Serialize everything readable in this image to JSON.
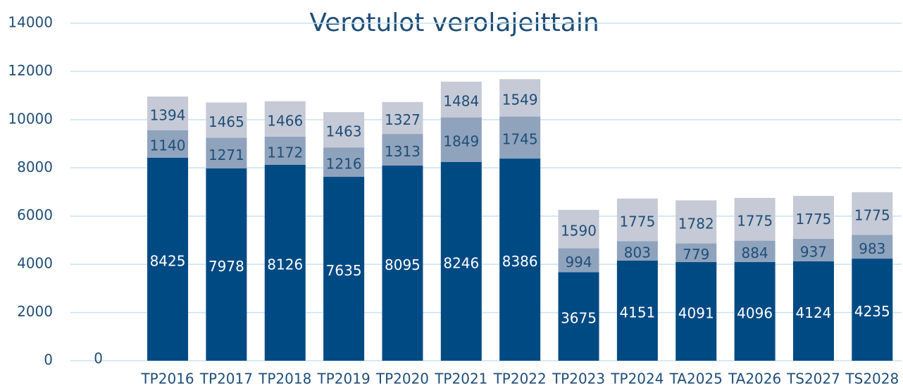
{
  "chart_data": {
    "type": "stacked_bar",
    "title": "Verotulot verolajeittain",
    "categories": [
      null,
      "TP2016",
      "TP2017",
      "TP2018",
      "TP2019",
      "TP2020",
      "TP2021",
      "TP2022",
      "TP2023",
      "TP2024",
      "TA2025",
      "TA2026",
      "TS2027",
      "TS2028"
    ],
    "series": [
      {
        "color": "#004a84",
        "values": [
          0,
          8425,
          7978,
          8126,
          7635,
          8095,
          8246,
          8386,
          3675,
          4151,
          4091,
          4096,
          4124,
          4235
        ]
      },
      {
        "color": "#8fa3bd",
        "values": [
          null,
          1140,
          1271,
          1172,
          1216,
          1313,
          1849,
          1745,
          994,
          803,
          779,
          884,
          937,
          983
        ]
      },
      {
        "color": "#c5cad6",
        "values": [
          null,
          1394,
          1465,
          1466,
          1463,
          1327,
          1484,
          1549,
          1590,
          1775,
          1782,
          1775,
          1775,
          1775
        ]
      }
    ],
    "ylim": [
      0,
      14000
    ],
    "yticks": [
      0,
      2000,
      4000,
      6000,
      8000,
      10000,
      12000,
      14000
    ],
    "grid": true
  }
}
